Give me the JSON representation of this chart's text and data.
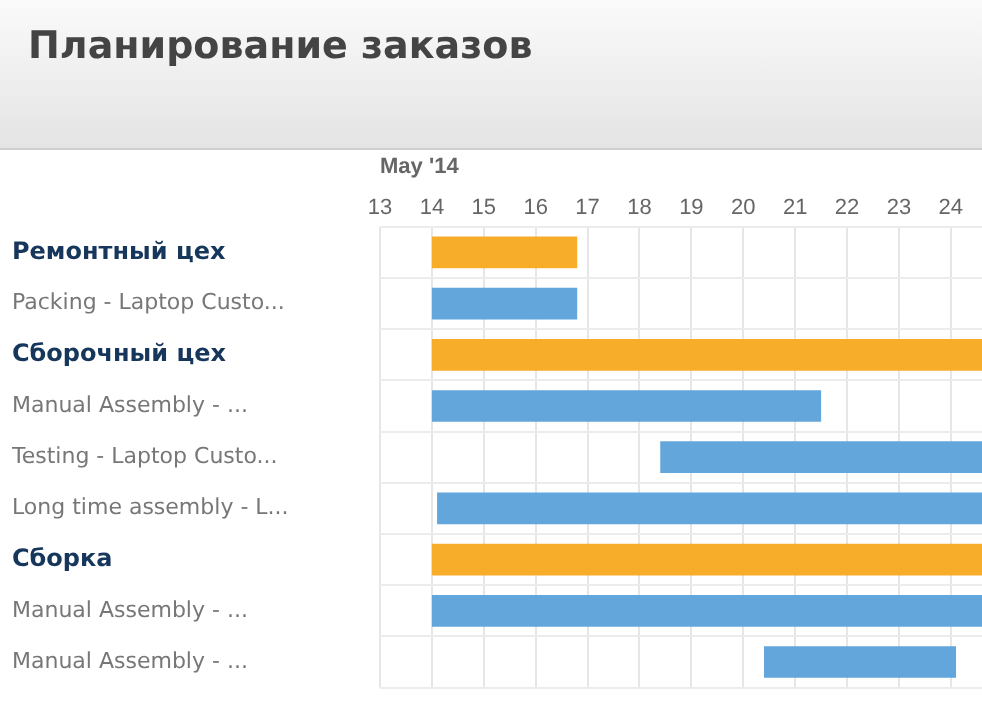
{
  "chart_data": {
    "type": "bar",
    "orientation": "horizontal",
    "title": "Планирование заказов",
    "xlabel": "May '14",
    "categories": [
      "Ремонтный цех",
      "Packing - Laptop Custo...",
      "Сборочный цех",
      "Manual Assembly - ...",
      "Testing - Laptop Custo...",
      "Long time assembly - L...",
      "Сборка",
      "Manual Assembly - ...",
      "Manual Assembly - ..."
    ],
    "base": [
      14,
      14,
      14,
      14,
      18.4,
      14.1,
      14,
      14,
      20.4
    ],
    "values": [
      2.8,
      2.8,
      10.6,
      7.5,
      6.2,
      10.5,
      10.6,
      10.6,
      3.7
    ],
    "colors": [
      "#f7ac2a",
      "#62a6dc",
      "#f7ac2a",
      "#62a6dc",
      "#62a6dc",
      "#62a6dc",
      "#f7ac2a",
      "#62a6dc",
      "#62a6dc"
    ],
    "xlim": [
      13,
      24.6
    ],
    "xticks": [
      13,
      14,
      15,
      16,
      17,
      18,
      19,
      20,
      21,
      22,
      23,
      24
    ],
    "grid": true,
    "legend": false
  }
}
